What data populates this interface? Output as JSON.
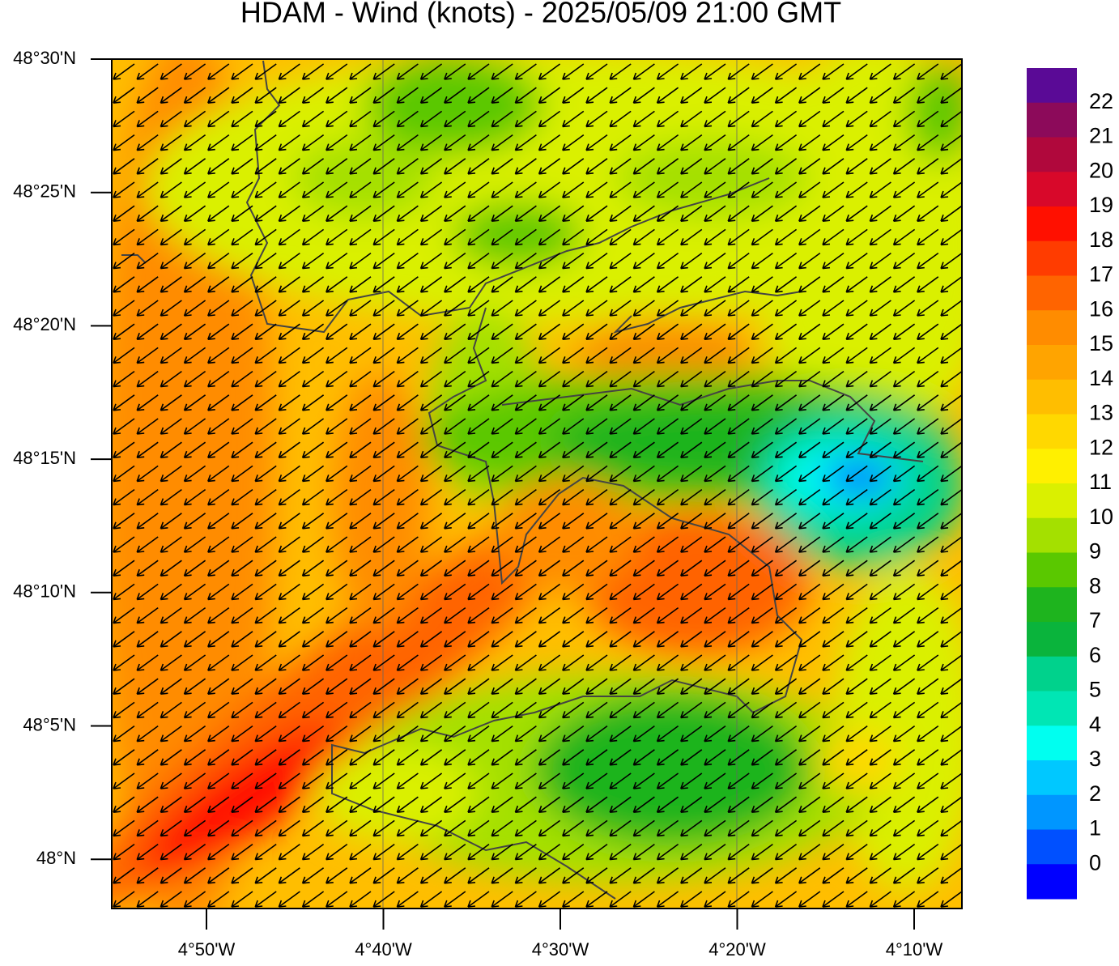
{
  "title": "HDAM - Wind (knots)  -  2025/05/09  21:00 GMT",
  "axes": {
    "y_ticks": [
      "48°30'N",
      "48°25'N",
      "48°20'N",
      "48°15'N",
      "48°10'N",
      "48°5'N",
      "48°N"
    ],
    "x_ticks": [
      "4°50'W",
      "4°40'W",
      "4°30'W",
      "4°20'W",
      "4°10'W"
    ]
  },
  "colorbar": {
    "labels": [
      22,
      21,
      20,
      19,
      18,
      17,
      16,
      15,
      14,
      13,
      12,
      11,
      10,
      9,
      8,
      7,
      6,
      5,
      4,
      3,
      2,
      1,
      0
    ],
    "colors": [
      "#5a0a96",
      "#8c0a5a",
      "#b0083c",
      "#d8082a",
      "#ff1000",
      "#ff3c00",
      "#ff6400",
      "#ff8c00",
      "#ffa400",
      "#ffbe00",
      "#ffd800",
      "#fff000",
      "#daf000",
      "#a4e000",
      "#5ac800",
      "#1eb41e",
      "#0ab43c",
      "#00d28c",
      "#00e6b4",
      "#00fff0",
      "#00c8ff",
      "#0096ff",
      "#0050ff",
      "#0000ff"
    ]
  }
}
